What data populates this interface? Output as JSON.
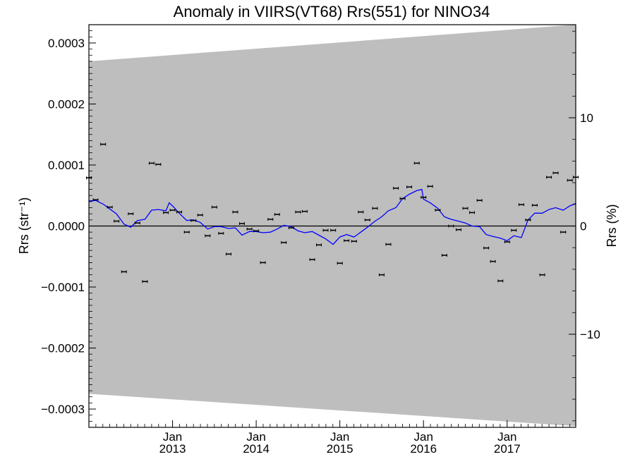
{
  "chart_data": {
    "type": "scatter",
    "title": "Anomaly in VIIRS(VT68) Rrs(551) for NINO34",
    "ylabel_left": "Rrs (str⁻¹)",
    "ylabel_right": "Rrs (%)",
    "xlim": [
      2012.0,
      2017.82
    ],
    "ylim": [
      -0.00033,
      0.00033
    ],
    "y2lim": [
      -18.6,
      18.6
    ],
    "y_ticks": [
      {
        "value": 0.0003,
        "label": "0.0003"
      },
      {
        "value": 0.0002,
        "label": "0.0002"
      },
      {
        "value": 0.0001,
        "label": "0.0001"
      },
      {
        "value": 0.0,
        "label": "0.0000"
      },
      {
        "value": -0.0001,
        "label": "−0.0001"
      },
      {
        "value": -0.0002,
        "label": "−0.0002"
      },
      {
        "value": -0.0003,
        "label": "−0.0003"
      }
    ],
    "y2_ticks": [
      {
        "value": 10,
        "label": "10"
      },
      {
        "value": 0,
        "label": "0"
      },
      {
        "value": -10,
        "label": "−10"
      }
    ],
    "x_ticks": [
      {
        "value": 2013.0,
        "month": "Jan",
        "year": "2013"
      },
      {
        "value": 2014.0,
        "month": "Jan",
        "year": "2014"
      },
      {
        "value": 2015.0,
        "month": "Jan",
        "year": "2015"
      },
      {
        "value": 2016.0,
        "month": "Jan",
        "year": "2016"
      },
      {
        "value": 2017.0,
        "month": "Jan",
        "year": "2017"
      }
    ],
    "uncertainty_band": {
      "x": [
        2012.0,
        2017.82
      ],
      "upper": [
        0.00027,
        0.00033
      ],
      "lower": [
        -0.000275,
        -0.000328
      ],
      "color": "#bebebe"
    },
    "series": [
      {
        "kind": "points-with-error-bars",
        "color": "#000000",
        "x": [
          2012.0,
          2012.08,
          2012.17,
          2012.25,
          2012.33,
          2012.42,
          2012.5,
          2012.58,
          2012.67,
          2012.75,
          2012.83,
          2012.92,
          2013.0,
          2013.08,
          2013.17,
          2013.25,
          2013.33,
          2013.42,
          2013.5,
          2013.58,
          2013.67,
          2013.75,
          2013.83,
          2013.92,
          2014.0,
          2014.08,
          2014.17,
          2014.25,
          2014.33,
          2014.42,
          2014.5,
          2014.58,
          2014.67,
          2014.75,
          2014.83,
          2014.92,
          2015.0,
          2015.08,
          2015.17,
          2015.25,
          2015.33,
          2015.42,
          2015.5,
          2015.58,
          2015.67,
          2015.75,
          2015.83,
          2015.92,
          2016.0,
          2016.08,
          2016.17,
          2016.25,
          2016.33,
          2016.42,
          2016.5,
          2016.58,
          2016.67,
          2016.75,
          2016.83,
          2016.92,
          2017.0,
          2017.08,
          2017.17,
          2017.25,
          2017.33,
          2017.42,
          2017.5,
          2017.58,
          2017.67,
          2017.75,
          2017.82
        ],
        "y": [
          7.9e-05,
          4.3e-05,
          0.000134,
          3.1e-05,
          8e-06,
          -7.5e-05,
          2e-05,
          5e-06,
          -9.1e-05,
          0.000103,
          0.000101,
          2.2e-05,
          2.6e-05,
          2.3e-05,
          -1e-05,
          9e-06,
          1.8e-05,
          -1.6e-05,
          3.1e-05,
          -1.2e-05,
          -4.6e-05,
          2.3e-05,
          4e-06,
          -5e-06,
          -8e-06,
          -6e-05,
          1.1e-05,
          1.9e-05,
          -2.7e-05,
          -3e-06,
          2.3e-05,
          2.4e-05,
          -5.5e-05,
          -3.1e-05,
          -7e-06,
          -7e-06,
          -6.1e-05,
          -2.4e-05,
          -2.5e-05,
          2.3e-05,
          1e-05,
          2.9e-05,
          -8e-05,
          -3e-05,
          6.2e-05,
          4.5e-05,
          6.4e-05,
          0.000103,
          4.7e-05,
          6.5e-05,
          2.6e-05,
          -4.8e-05,
          -0.0,
          -6e-06,
          2.9e-05,
          2.2e-05,
          4.2e-05,
          -3.6e-05,
          -5.8e-05,
          -9e-05,
          -2.6e-05,
          -7e-06,
          3.5e-05,
          1e-05,
          3.4e-05,
          -8e-05,
          8e-05,
          8.7e-05,
          -1e-05,
          7.5e-05,
          8e-05
        ]
      },
      {
        "kind": "line",
        "color": "#0000ff",
        "x": [
          2012.0,
          2012.08,
          2012.17,
          2012.25,
          2012.33,
          2012.42,
          2012.5,
          2012.58,
          2012.67,
          2012.75,
          2012.83,
          2012.92,
          2012.96,
          2013.0,
          2013.08,
          2013.17,
          2013.25,
          2013.33,
          2013.42,
          2013.5,
          2013.58,
          2013.67,
          2013.75,
          2013.83,
          2013.92,
          2014.0,
          2014.08,
          2014.17,
          2014.25,
          2014.33,
          2014.42,
          2014.5,
          2014.58,
          2014.67,
          2014.75,
          2014.83,
          2014.92,
          2015.0,
          2015.08,
          2015.17,
          2015.25,
          2015.33,
          2015.42,
          2015.5,
          2015.58,
          2015.67,
          2015.75,
          2015.83,
          2015.92,
          2015.98,
          2016.0,
          2016.08,
          2016.17,
          2016.25,
          2016.33,
          2016.42,
          2016.5,
          2016.58,
          2016.67,
          2016.75,
          2016.83,
          2016.92,
          2017.0,
          2017.08,
          2017.17,
          2017.25,
          2017.33,
          2017.42,
          2017.5,
          2017.58,
          2017.67,
          2017.75,
          2017.82
        ],
        "y": [
          4.1e-05,
          4.2e-05,
          3.6e-05,
          2.8e-05,
          2e-05,
          3e-06,
          -2e-06,
          9e-06,
          1.1e-05,
          2.6e-05,
          2.7e-05,
          2.5e-05,
          3.8e-05,
          3.3e-05,
          2.1e-05,
          9e-06,
          1e-05,
          6e-06,
          -5e-06,
          -1e-06,
          -1e-06,
          -4e-06,
          -3e-06,
          -1.5e-05,
          -9e-06,
          -9e-06,
          -1.1e-05,
          -1e-05,
          -5e-06,
          1e-06,
          -1e-06,
          -8e-06,
          -1.1e-05,
          -9e-06,
          -1.5e-05,
          -2.1e-05,
          -3e-05,
          -1.8e-05,
          -1.4e-05,
          -1.8e-05,
          -1e-05,
          -2e-06,
          8e-06,
          1.5e-05,
          2.5e-05,
          3e-05,
          4.5e-05,
          5.2e-05,
          5.8e-05,
          6e-05,
          4.4e-05,
          3.8e-05,
          2.9e-05,
          1.5e-05,
          1.1e-05,
          8e-06,
          5e-06,
          0.0,
          -1e-06,
          -1.4e-05,
          -1.7e-05,
          -2e-05,
          -2.4e-05,
          -1.6e-05,
          -1.9e-05,
          1e-05,
          2.1e-05,
          2.1e-05,
          2.7e-05,
          3e-05,
          2.6e-05,
          3.3e-05,
          3.7e-05
        ]
      }
    ]
  }
}
